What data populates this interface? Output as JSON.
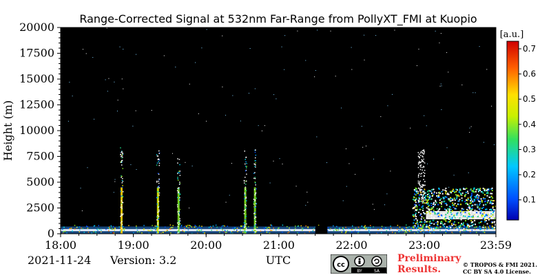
{
  "chart_data": {
    "type": "heatmap",
    "title": "Range-Corrected Signal at 532nm Far-Range from PollyXT_FMI at Kuopio",
    "xlabel": "UTC",
    "ylabel": "Height (m)",
    "x_ticks": [
      "18:00",
      "19:00",
      "20:00",
      "21:00",
      "22:00",
      "23:00",
      "23:59"
    ],
    "xlim": [
      "18:00",
      "23:59"
    ],
    "y_ticks": [
      0,
      2500,
      5000,
      7500,
      10000,
      12500,
      15000,
      17500,
      20000
    ],
    "ylim": [
      0,
      20000
    ],
    "colorbar": {
      "label": "[a.u.]",
      "ticks": [
        0.1,
        0.2,
        0.3,
        0.4,
        0.5,
        0.6,
        0.7
      ],
      "range": [
        0.02,
        0.73
      ],
      "colormap": "jet"
    },
    "background_color": "#000000",
    "data_gap": [
      "21:30",
      "21:40"
    ],
    "features": [
      {
        "time": "18:50",
        "top_height": 8500,
        "max_value": 0.7
      },
      {
        "time": "19:20",
        "top_height": 8200,
        "max_value": 0.6
      },
      {
        "time": "19:37",
        "top_height": 8000,
        "max_value": 0.55
      },
      {
        "time": "20:32",
        "top_height": 8100,
        "max_value": 0.5
      },
      {
        "time": "20:40",
        "top_height": 8200,
        "max_value": 0.5
      },
      {
        "start": "22:50",
        "end": "23:59",
        "base_height": 500,
        "top_height": 4500,
        "max_value": 0.7
      }
    ]
  },
  "footer": {
    "date": "2021-11-24",
    "version": "Version: 3.2",
    "preliminary_line1": "Preliminary",
    "preliminary_line2": "Results.",
    "copyright_line1": "© TROPOS & FMI 2021.",
    "copyright_line2": "CC BY SA 4.0 License.",
    "license_badge_by": "BY",
    "license_badge_sa": "SA"
  }
}
